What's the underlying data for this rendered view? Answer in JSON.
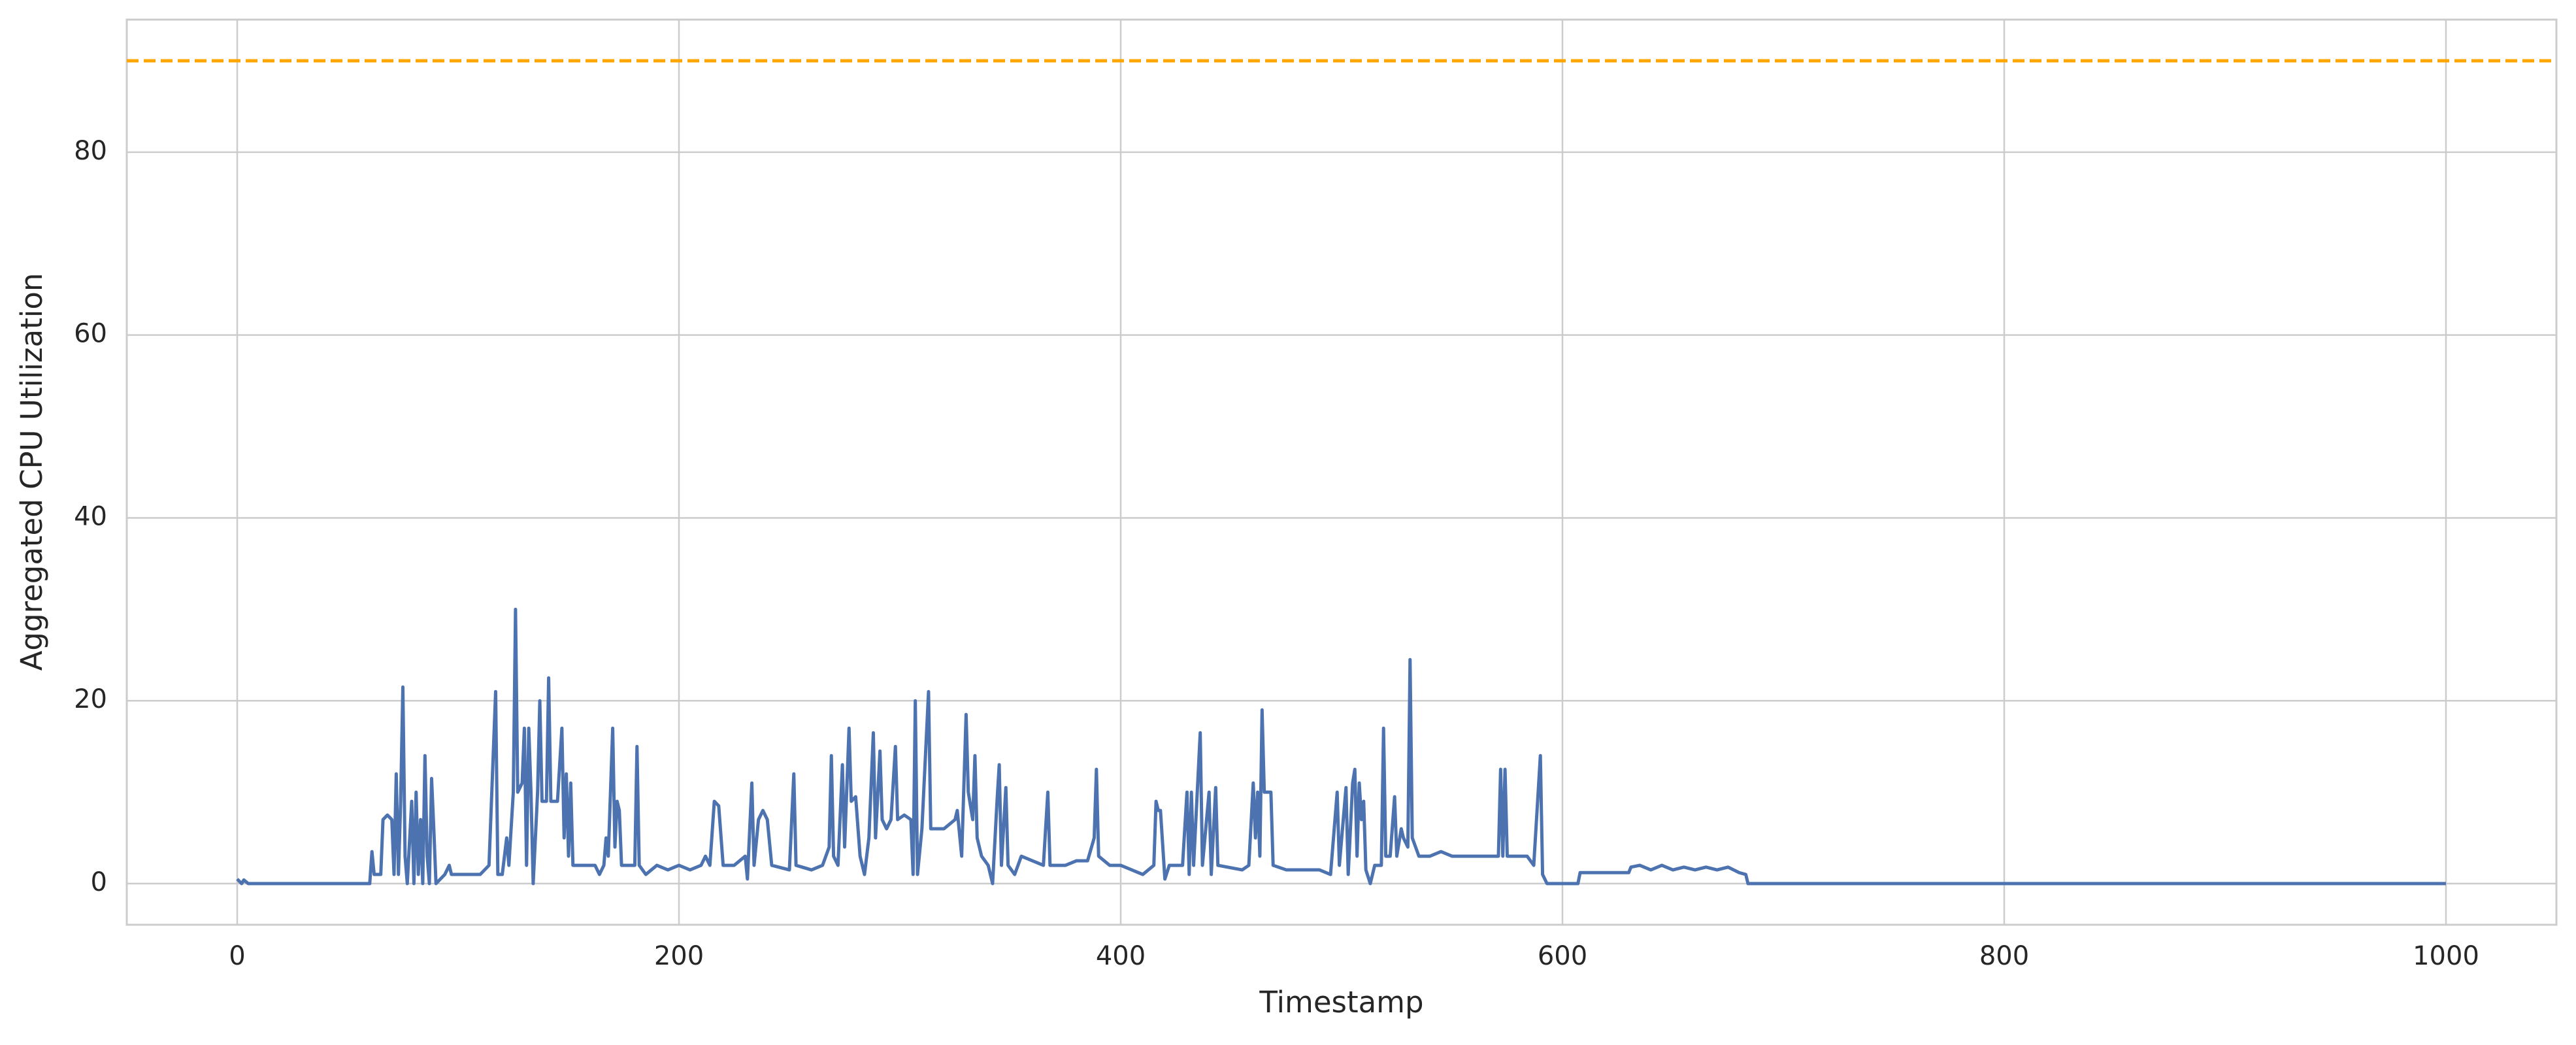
{
  "chart_data": {
    "type": "line",
    "xlabel": "Timestamp",
    "ylabel": "Aggregated CPU Utilization",
    "xlim": [
      -50,
      1050
    ],
    "ylim": [
      -4.5,
      94.5
    ],
    "xticks": [
      0,
      200,
      400,
      600,
      800,
      1000
    ],
    "yticks": [
      0,
      20,
      40,
      60,
      80
    ],
    "grid": true,
    "hlines": [
      {
        "y": 90,
        "color": "#ffa500",
        "dashed": true
      }
    ],
    "x": [
      0,
      2,
      3,
      5,
      60,
      61,
      62,
      65,
      66,
      68,
      70,
      71,
      72,
      73,
      74,
      75,
      76,
      77,
      79,
      80,
      81,
      82,
      83,
      84,
      85,
      86,
      87,
      88,
      89,
      90,
      92,
      94,
      96,
      97,
      110,
      114,
      117,
      118,
      120,
      122,
      123,
      125,
      126,
      127,
      129,
      130,
      131,
      132,
      133,
      134,
      136,
      137,
      138,
      140,
      141,
      142,
      145,
      147,
      148,
      149,
      150,
      151,
      152,
      162,
      164,
      166,
      167,
      168,
      170,
      171,
      172,
      173,
      174,
      180,
      181,
      182,
      185,
      190,
      195,
      200,
      205,
      210,
      212,
      214,
      216,
      218,
      220,
      225,
      230,
      231,
      233,
      234,
      236,
      238,
      240,
      242,
      250,
      252,
      253,
      260,
      265,
      268,
      269,
      270,
      272,
      274,
      275,
      277,
      278,
      280,
      282,
      284,
      286,
      288,
      289,
      291,
      292,
      294,
      296,
      298,
      299,
      302,
      305,
      306,
      307,
      308,
      310,
      312,
      313,
      314,
      320,
      325,
      326,
      328,
      330,
      331,
      333,
      334,
      335,
      337,
      340,
      342,
      344,
      345,
      346,
      348,
      349,
      352,
      355,
      360,
      365,
      367,
      368,
      375,
      380,
      385,
      388,
      389,
      390,
      395,
      400,
      405,
      410,
      415,
      416,
      417,
      418,
      420,
      422,
      428,
      430,
      431,
      432,
      433,
      436,
      437,
      440,
      441,
      443,
      444,
      455,
      458,
      460,
      461,
      462,
      463,
      464,
      465,
      466,
      468,
      469,
      475,
      480,
      485,
      490,
      495,
      498,
      499,
      502,
      503,
      505,
      506,
      507,
      508,
      509,
      510,
      511,
      513,
      515,
      518,
      519,
      520,
      522,
      524,
      525,
      527,
      528,
      530,
      531,
      532,
      535,
      540,
      545,
      550,
      555,
      560,
      565,
      571,
      572,
      573,
      574,
      575,
      580,
      584,
      587,
      590,
      591,
      593,
      607,
      608,
      630,
      631,
      635,
      640,
      645,
      650,
      655,
      660,
      665,
      670,
      675,
      680,
      683,
      684,
      1000
    ],
    "series": [
      {
        "color": "#4c72b0",
        "values": [
          0.5,
          0,
          0.4,
          0,
          0,
          3.5,
          1,
          1,
          7,
          7.5,
          7,
          1,
          12,
          1,
          9,
          21.5,
          3,
          0,
          9,
          0,
          10,
          1,
          7,
          0,
          14,
          3,
          0,
          11.5,
          6,
          0,
          0.5,
          1,
          2,
          1,
          1,
          2,
          21,
          1,
          1,
          5,
          2,
          10,
          30,
          10,
          11,
          17,
          2,
          17,
          10,
          0,
          10,
          20,
          9,
          9,
          22.5,
          9,
          9,
          17,
          5,
          12,
          3,
          11,
          2,
          2,
          1,
          2,
          5,
          3,
          17,
          4,
          9,
          8,
          2,
          2,
          15,
          2,
          1,
          2,
          1.5,
          2,
          1.5,
          2,
          3,
          2,
          9,
          8.5,
          2,
          2,
          3,
          0.5,
          11,
          2,
          7,
          8,
          7,
          2,
          1.5,
          12,
          2,
          1.5,
          2,
          4,
          14,
          3,
          2,
          13,
          4,
          17,
          9,
          9.5,
          3,
          1,
          5,
          16.5,
          5,
          14.5,
          7,
          6,
          7,
          15,
          7,
          7.5,
          7,
          1,
          20,
          1,
          6,
          16,
          21,
          6,
          6,
          7,
          8,
          3,
          18.5,
          10,
          7,
          14,
          5,
          3,
          2,
          0,
          9,
          13,
          2,
          10.5,
          2,
          1,
          3,
          2.5,
          2,
          10,
          2,
          2,
          2.5,
          2.5,
          5,
          12.5,
          3,
          2,
          2,
          1.5,
          1,
          2,
          9,
          8,
          8,
          0.5,
          2,
          2,
          10,
          1,
          10,
          2,
          16.5,
          2,
          10,
          1,
          10.5,
          2,
          1.5,
          2,
          11,
          5,
          10,
          3,
          19,
          10,
          10,
          10,
          2,
          1.5,
          1.5,
          1.5,
          1.5,
          1,
          10,
          2,
          10.5,
          1,
          11,
          12.5,
          3,
          11,
          7,
          9,
          1.5,
          0,
          2,
          2,
          17,
          3,
          3,
          9.5,
          3,
          6,
          5,
          4,
          24.5,
          5,
          3,
          3,
          3.5,
          3,
          3,
          3,
          3,
          3,
          12.5,
          3,
          12.5,
          3,
          3,
          3,
          2,
          14,
          1,
          0,
          0,
          1.2,
          1.2,
          1.8,
          2,
          1.5,
          2,
          1.5,
          1.8,
          1.5,
          1.8,
          1.5,
          1.8,
          1.2,
          1,
          0,
          0
        ]
      }
    ]
  }
}
